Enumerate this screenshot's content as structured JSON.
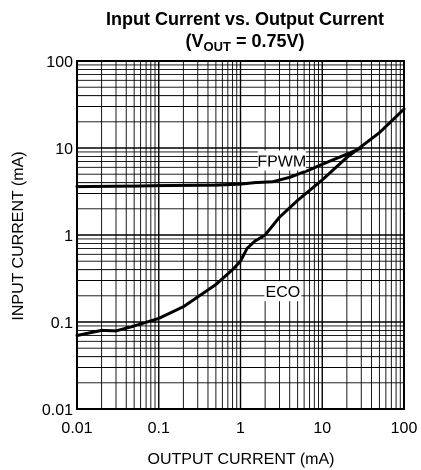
{
  "chart_data": {
    "type": "line",
    "title": "Input Current vs. Output Current",
    "subtitle": {
      "prefix": "(V",
      "subscript": "OUT",
      "suffix": " = 0.75V)"
    },
    "xlabel": "OUTPUT CURRENT (mA)",
    "ylabel": "INPUT CURRENT (mA)",
    "xscale": "log",
    "yscale": "log",
    "xlim": [
      0.01,
      100
    ],
    "ylim": [
      0.01,
      100
    ],
    "grid": true,
    "x_ticks": [
      {
        "value": 0.01,
        "label": "0.01"
      },
      {
        "value": 0.1,
        "label": "0.1"
      },
      {
        "value": 1,
        "label": "1"
      },
      {
        "value": 10,
        "label": "10"
      },
      {
        "value": 100,
        "label": "100"
      }
    ],
    "y_ticks": [
      {
        "value": 0.01,
        "label": "0.01"
      },
      {
        "value": 0.1,
        "label": "0.1"
      },
      {
        "value": 1,
        "label": "1"
      },
      {
        "value": 10,
        "label": "10"
      },
      {
        "value": 100,
        "label": "100"
      }
    ],
    "series": [
      {
        "name": "FPWM",
        "label_at": {
          "x": 3.2,
          "y": 7.0
        },
        "points": [
          [
            0.01,
            3.6
          ],
          [
            0.05,
            3.65
          ],
          [
            0.1,
            3.7
          ],
          [
            0.5,
            3.75
          ],
          [
            1,
            3.85
          ],
          [
            1.5,
            4.0
          ],
          [
            2.5,
            4.1
          ],
          [
            4,
            4.6
          ],
          [
            7,
            5.6
          ],
          [
            10,
            6.5
          ],
          [
            20,
            8.5
          ],
          [
            30,
            10.0
          ]
        ]
      },
      {
        "name": "ECO",
        "label_at": {
          "x": 3.3,
          "y": 0.22
        },
        "points": [
          [
            0.01,
            0.07
          ],
          [
            0.02,
            0.08
          ],
          [
            0.03,
            0.079
          ],
          [
            0.05,
            0.09
          ],
          [
            0.1,
            0.11
          ],
          [
            0.2,
            0.15
          ],
          [
            0.5,
            0.27
          ],
          [
            0.8,
            0.4
          ],
          [
            1,
            0.5
          ],
          [
            1.2,
            0.7
          ],
          [
            1.5,
            0.85
          ],
          [
            2,
            1.0
          ],
          [
            3,
            1.6
          ],
          [
            5,
            2.5
          ],
          [
            10,
            4.3
          ],
          [
            20,
            7.8
          ],
          [
            50,
            15
          ],
          [
            100,
            28
          ]
        ]
      }
    ]
  }
}
